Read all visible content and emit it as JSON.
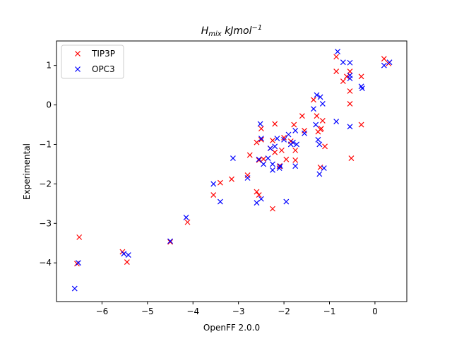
{
  "chart_data": {
    "type": "scatter",
    "title_main": "H",
    "title_sub": "mix",
    "title_rest": " kJmol",
    "title_sup": "−1",
    "xlabel": "OpenFF 2.0.0",
    "ylabel": "Experimental",
    "xlim": [
      -7.0,
      0.7
    ],
    "ylim": [
      -4.98,
      1.62
    ],
    "xticks": [
      -6,
      -5,
      -4,
      -3,
      -2,
      -1,
      0
    ],
    "xtick_labels": [
      "−6",
      "−5",
      "−4",
      "−3",
      "−2",
      "−1",
      "0"
    ],
    "yticks": [
      -4,
      -3,
      -2,
      -1,
      0,
      1
    ],
    "ytick_labels": [
      "−4",
      "−3",
      "−2",
      "−1",
      "0",
      "1"
    ],
    "grid": false,
    "legend_position": "top-left",
    "marker": "x",
    "series": [
      {
        "name": "TIP3P",
        "color": "#ff0000",
        "points": [
          [
            -6.55,
            -4.02
          ],
          [
            -6.5,
            -3.35
          ],
          [
            -5.55,
            -3.72
          ],
          [
            -5.45,
            -3.98
          ],
          [
            -4.5,
            -3.47
          ],
          [
            -4.12,
            -2.97
          ],
          [
            -3.55,
            -2.28
          ],
          [
            -3.4,
            -1.97
          ],
          [
            -3.15,
            -1.88
          ],
          [
            -2.8,
            -1.78
          ],
          [
            -2.75,
            -1.27
          ],
          [
            -2.6,
            -2.2
          ],
          [
            -2.55,
            -2.28
          ],
          [
            -2.6,
            -0.95
          ],
          [
            -2.5,
            -0.6
          ],
          [
            -2.5,
            -0.88
          ],
          [
            -2.55,
            -1.4
          ],
          [
            -2.45,
            -1.37
          ],
          [
            -2.3,
            -1.1
          ],
          [
            -2.25,
            -2.63
          ],
          [
            -2.25,
            -0.9
          ],
          [
            -2.2,
            -1.2
          ],
          [
            -2.2,
            -0.48
          ],
          [
            -2.1,
            -1.55
          ],
          [
            -2.05,
            -1.15
          ],
          [
            -2.0,
            -0.83
          ],
          [
            -1.95,
            -1.38
          ],
          [
            -1.85,
            -0.92
          ],
          [
            -1.78,
            -0.5
          ],
          [
            -1.75,
            -1.4
          ],
          [
            -1.75,
            -1.15
          ],
          [
            -1.6,
            -0.28
          ],
          [
            -1.55,
            -0.65
          ],
          [
            -1.35,
            0.13
          ],
          [
            -1.28,
            -0.28
          ],
          [
            -1.25,
            -0.68
          ],
          [
            -1.2,
            -0.62
          ],
          [
            -1.18,
            -0.6
          ],
          [
            -1.15,
            -0.4
          ],
          [
            -1.1,
            -1.05
          ],
          [
            -1.2,
            -1.58
          ],
          [
            -0.85,
            0.85
          ],
          [
            -0.85,
            1.22
          ],
          [
            -0.7,
            0.6
          ],
          [
            -0.62,
            0.72
          ],
          [
            -0.55,
            0.35
          ],
          [
            -0.55,
            0.03
          ],
          [
            -0.55,
            0.85
          ],
          [
            -0.52,
            -1.35
          ],
          [
            -0.3,
            0.72
          ],
          [
            -0.3,
            -0.5
          ],
          [
            0.2,
            1.17
          ],
          [
            0.3,
            1.05
          ]
        ]
      },
      {
        "name": "OPC3",
        "color": "#0000ff",
        "points": [
          [
            -6.6,
            -4.65
          ],
          [
            -6.52,
            -4.0
          ],
          [
            -5.52,
            -3.77
          ],
          [
            -5.42,
            -3.8
          ],
          [
            -4.5,
            -3.45
          ],
          [
            -4.15,
            -2.85
          ],
          [
            -3.55,
            -2.0
          ],
          [
            -3.4,
            -2.45
          ],
          [
            -3.12,
            -1.35
          ],
          [
            -2.8,
            -1.85
          ],
          [
            -2.6,
            -2.48
          ],
          [
            -2.55,
            -1.38
          ],
          [
            -2.52,
            -0.48
          ],
          [
            -2.5,
            -0.85
          ],
          [
            -2.5,
            -2.38
          ],
          [
            -2.45,
            -1.5
          ],
          [
            -2.35,
            -1.35
          ],
          [
            -2.3,
            -1.1
          ],
          [
            -2.25,
            -1.5
          ],
          [
            -2.25,
            -1.65
          ],
          [
            -2.2,
            -1.05
          ],
          [
            -2.15,
            -0.85
          ],
          [
            -2.1,
            -1.6
          ],
          [
            -2.08,
            -1.55
          ],
          [
            -2.0,
            -0.88
          ],
          [
            -1.95,
            -2.45
          ],
          [
            -1.9,
            -0.75
          ],
          [
            -1.85,
            -1.0
          ],
          [
            -1.8,
            -0.95
          ],
          [
            -1.75,
            -1.55
          ],
          [
            -1.75,
            -0.65
          ],
          [
            -1.72,
            -1.0
          ],
          [
            -1.55,
            -0.72
          ],
          [
            -1.35,
            -0.1
          ],
          [
            -1.3,
            -0.5
          ],
          [
            -1.28,
            0.25
          ],
          [
            -1.25,
            -0.88
          ],
          [
            -1.22,
            -1.0
          ],
          [
            -1.22,
            -1.75
          ],
          [
            -1.2,
            0.2
          ],
          [
            -1.15,
            0.03
          ],
          [
            -1.12,
            -1.6
          ],
          [
            -0.85,
            -0.42
          ],
          [
            -0.82,
            1.35
          ],
          [
            -0.7,
            1.08
          ],
          [
            -0.55,
            0.75
          ],
          [
            -0.55,
            -0.55
          ],
          [
            -0.55,
            1.07
          ],
          [
            -0.55,
            0.67
          ],
          [
            -0.3,
            0.47
          ],
          [
            -0.28,
            0.42
          ],
          [
            0.2,
            1.0
          ],
          [
            0.32,
            1.08
          ]
        ]
      }
    ]
  }
}
